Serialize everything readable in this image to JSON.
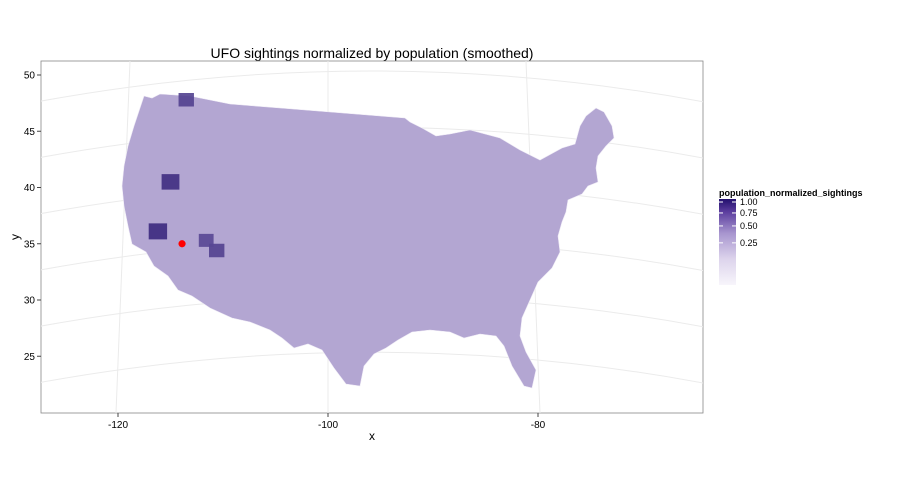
{
  "chart_data": {
    "type": "map",
    "title": "UFO sightings normalized by population (smoothed)",
    "xlabel": "x",
    "ylabel": "y",
    "x_ticks": [
      -120,
      -100,
      -80
    ],
    "y_ticks": [
      25,
      30,
      35,
      40,
      45,
      50
    ],
    "xlim": [
      -127.3,
      -63.6
    ],
    "ylim": [
      20.1,
      50.6
    ],
    "legend": {
      "title": "population_normalized_sightings",
      "breaks": [
        1.0,
        0.75,
        0.5,
        0.25
      ],
      "break_labels": [
        "1.00",
        "0.75",
        "0.50",
        "0.25"
      ],
      "scale": "sqrt",
      "low_color": "#f7f5fb",
      "high_color": "#23106e"
    },
    "highlight_point": {
      "lon": -113.9,
      "lat": 35.0,
      "color": "#ff0000"
    },
    "fill_base_color": "#b3a6d2",
    "hotspots": [
      {
        "lon": -116.2,
        "lat": 36.1,
        "value": 0.7
      },
      {
        "lon": -115.0,
        "lat": 40.5,
        "value": 0.65
      },
      {
        "lon": -110.6,
        "lat": 34.4,
        "value": 0.45
      },
      {
        "lon": -113.5,
        "lat": 47.8,
        "value": 0.45
      },
      {
        "lon": -111.6,
        "lat": 35.3,
        "value": 0.4
      }
    ],
    "grid": true
  }
}
